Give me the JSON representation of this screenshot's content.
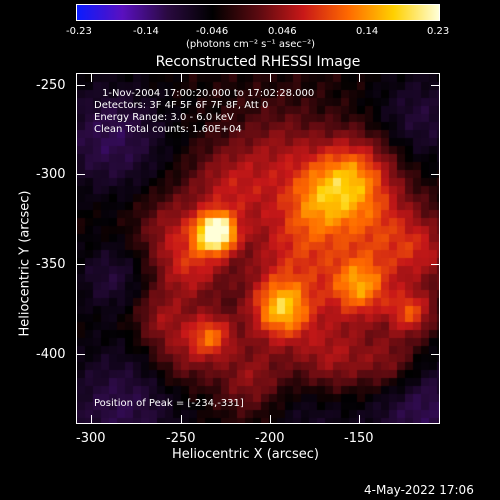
{
  "colorbar": {
    "tick_labels": [
      "-0.23",
      "-0.14",
      "-0.046",
      "0.046",
      "0.14",
      "0.23"
    ],
    "units_label": "(photons cm⁻² s⁻¹ asec⁻²)",
    "colormap": [
      "#0a1cff",
      "#5a10c0",
      "#2a0a40",
      "#000000",
      "#5a0a10",
      "#c81818",
      "#ff6a00",
      "#ffd000",
      "#ffffd8"
    ]
  },
  "title": "Reconstructed RHESSI Image",
  "annotation": {
    "time_range": "1-Nov-2004 17:00:20.000 to 17:02:28.000",
    "detectors": "Detectors: 3F 4F 5F 6F 7F 8F, Att 0",
    "energy_range": "Energy Range: 3.0 - 6.0 keV",
    "clean": "Clean     Total counts: 1.60E+04",
    "peak": "Position of Peak = [-234,-331]"
  },
  "x_axis": {
    "label": "Heliocentric X (arcsec)",
    "ticks": [
      "-300",
      "-250",
      "-200",
      "-150"
    ]
  },
  "y_axis": {
    "label": "Heliocentric Y (arcsec)",
    "ticks": [
      "-250",
      "-300",
      "-350",
      "-400"
    ]
  },
  "footer_date": "4-May-2022 17:06"
}
